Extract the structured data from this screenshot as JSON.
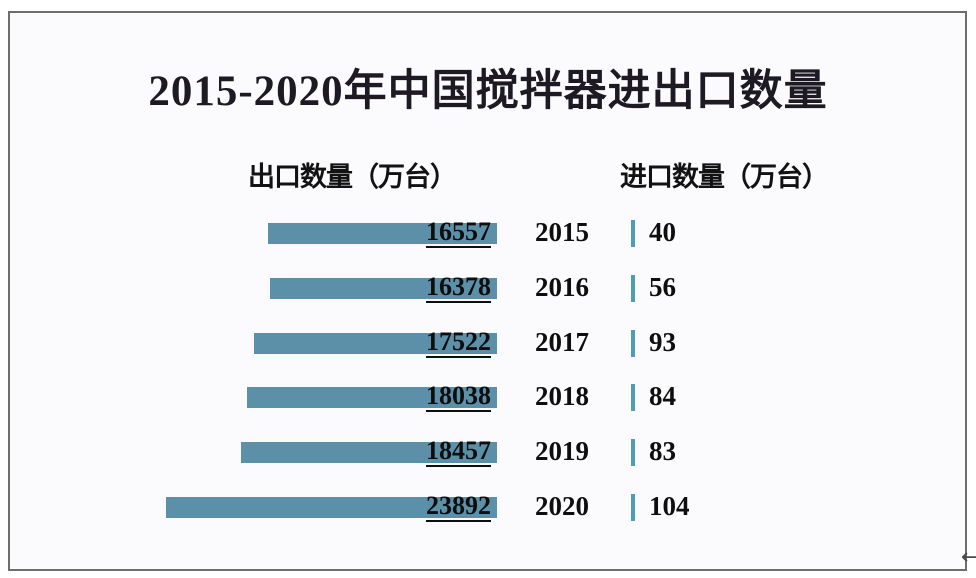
{
  "title": "2015-2020年中国搅拌器进出口数量",
  "columns": {
    "export_header": "出口数量（万台）",
    "import_header": "进口数量（万台）"
  },
  "watermark_fragment": "←",
  "colors": {
    "bar": "#5b90a8",
    "import_tick": "#4f9cb7",
    "frame_border": "#6e6e6e",
    "inner_background": "#fbfbfd",
    "title_text": "#1d1a24",
    "value_text": "#0e0e0e"
  },
  "chart_data": {
    "type": "bar",
    "orientation": "horizontal-opposed",
    "title": "2015-2020年中国搅拌器进出口数量",
    "categories": [
      "2015",
      "2016",
      "2017",
      "2018",
      "2019",
      "2020"
    ],
    "series": [
      {
        "name": "出口数量（万台）",
        "values": [
          16557,
          16378,
          17522,
          18038,
          18457,
          23892
        ]
      },
      {
        "name": "进口数量（万台）",
        "values": [
          40,
          56,
          93,
          84,
          83,
          104
        ]
      }
    ],
    "legend_position": "column-headers-above",
    "grid": false,
    "value_labels_shown": true,
    "rows": [
      {
        "year": "2015",
        "export": "16557",
        "import": "40"
      },
      {
        "year": "2016",
        "export": "16378",
        "import": "56"
      },
      {
        "year": "2017",
        "export": "17522",
        "import": "93"
      },
      {
        "year": "2018",
        "export": "18038",
        "import": "84"
      },
      {
        "year": "2019",
        "export": "18457",
        "import": "83"
      },
      {
        "year": "2020",
        "export": "23892",
        "import": "104"
      }
    ]
  }
}
